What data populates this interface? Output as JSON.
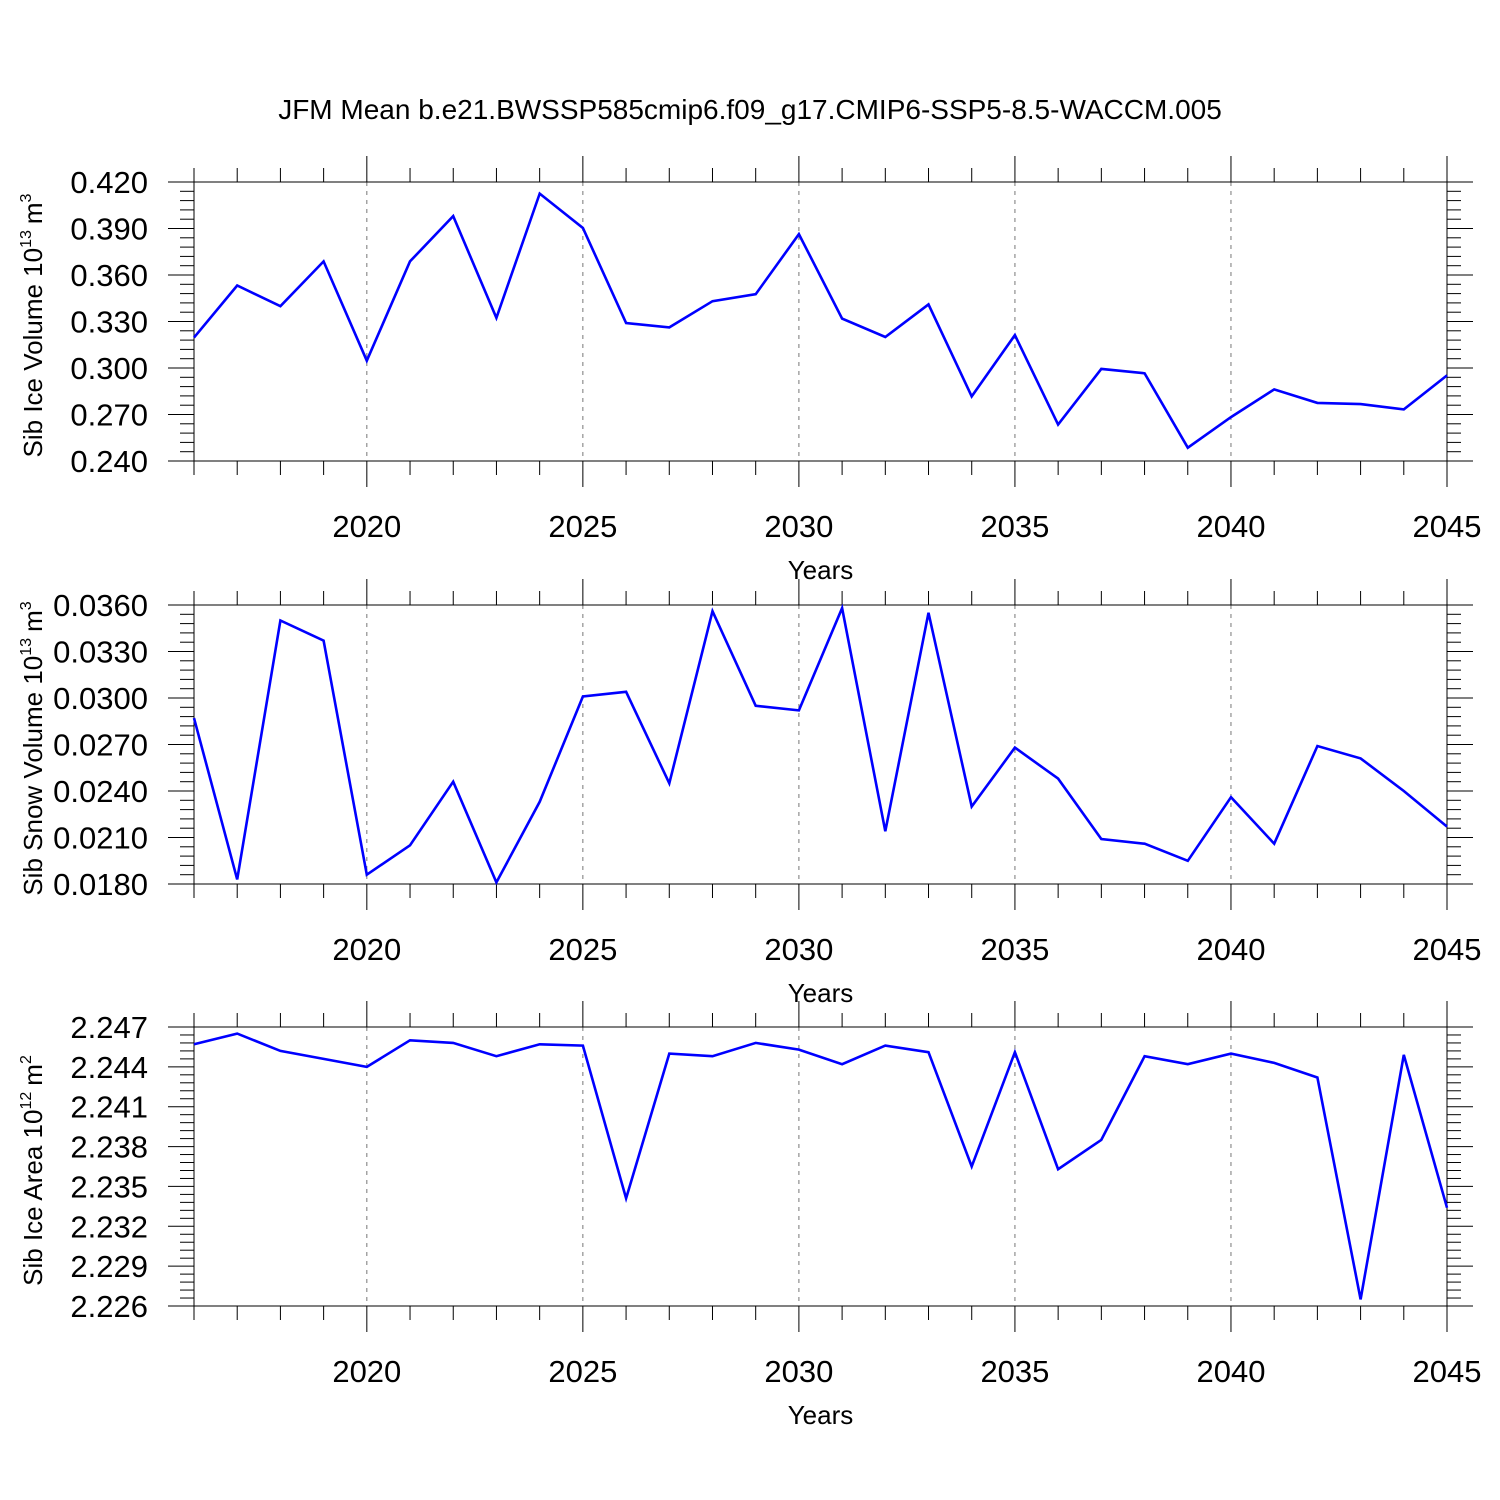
{
  "title": "JFM Mean b.e21.BWSSP585cmip6.f09_g17.CMIP6-SSP5-8.5-WACCM.005",
  "colors": {
    "line": "#0000ff",
    "axis": "#000000",
    "grid": "#777777"
  },
  "chart_data": [
    {
      "type": "line",
      "ylabel_main": "Sib Ice Volume 10",
      "ylabel_exp": "13",
      "ylabel_unit": "m",
      "ylabel_unit_exp": "3",
      "xlabel": "Years",
      "xlim": [
        2016,
        2045
      ],
      "ylim": [
        0.24,
        0.42
      ],
      "yticks": [
        "0.240",
        "0.270",
        "0.300",
        "0.330",
        "0.360",
        "0.390",
        "0.420"
      ],
      "ytick_values": [
        0.24,
        0.27,
        0.3,
        0.33,
        0.36,
        0.39,
        0.42
      ],
      "xticks": [
        "2020",
        "2025",
        "2030",
        "2035",
        "2040",
        "2045"
      ],
      "xtick_values": [
        2020,
        2025,
        2030,
        2035,
        2040,
        2045
      ],
      "x": [
        2016,
        2017,
        2018,
        2019,
        2020,
        2021,
        2022,
        2023,
        2024,
        2025,
        2026,
        2027,
        2028,
        2029,
        2030,
        2031,
        2032,
        2033,
        2034,
        2035,
        2036,
        2037,
        2038,
        2039,
        2040,
        2041,
        2042,
        2043,
        2044,
        2045
      ],
      "values": [
        0.3196,
        0.3532,
        0.3399,
        0.3688,
        0.3047,
        0.3688,
        0.398,
        0.3323,
        0.4125,
        0.3903,
        0.329,
        0.3262,
        0.3431,
        0.3476,
        0.3864,
        0.3319,
        0.32,
        0.341,
        0.2817,
        0.3212,
        0.2635,
        0.2994,
        0.2966,
        0.2486,
        0.2683,
        0.2862,
        0.2775,
        0.2767,
        0.2733,
        0.2952
      ],
      "grid": "vertical dashed at major x ticks"
    },
    {
      "type": "line",
      "ylabel_main": "Sib Snow Volume 10",
      "ylabel_exp": "13",
      "ylabel_unit": "m",
      "ylabel_unit_exp": "3",
      "xlabel": "Years",
      "xlim": [
        2016,
        2045
      ],
      "ylim": [
        0.018,
        0.036
      ],
      "yticks": [
        "0.0180",
        "0.0210",
        "0.0240",
        "0.0270",
        "0.0300",
        "0.0330",
        "0.0360"
      ],
      "ytick_values": [
        0.018,
        0.021,
        0.024,
        0.027,
        0.03,
        0.033,
        0.036
      ],
      "xticks": [
        "2020",
        "2025",
        "2030",
        "2035",
        "2040",
        "2045"
      ],
      "xtick_values": [
        2020,
        2025,
        2030,
        2035,
        2040,
        2045
      ],
      "x": [
        2016,
        2017,
        2018,
        2019,
        2020,
        2021,
        2022,
        2023,
        2024,
        2025,
        2026,
        2027,
        2028,
        2029,
        2030,
        2031,
        2032,
        2033,
        2034,
        2035,
        2036,
        2037,
        2038,
        2039,
        2040,
        2041,
        2042,
        2043,
        2044,
        2045
      ],
      "values": [
        0.0287,
        0.0183,
        0.035,
        0.0337,
        0.0186,
        0.0205,
        0.0246,
        0.0181,
        0.0233,
        0.0301,
        0.0304,
        0.0245,
        0.0356,
        0.0295,
        0.0292,
        0.0358,
        0.0214,
        0.0355,
        0.023,
        0.0268,
        0.0248,
        0.0209,
        0.0206,
        0.0195,
        0.0236,
        0.0206,
        0.0269,
        0.0261,
        0.024,
        0.0217
      ],
      "grid": "vertical dashed at major x ticks"
    },
    {
      "type": "line",
      "ylabel_main": "Sib Ice Area 10",
      "ylabel_exp": "12",
      "ylabel_unit": "m",
      "ylabel_unit_exp": "2",
      "xlabel": "Years",
      "xlim": [
        2016,
        2045
      ],
      "ylim": [
        2.226,
        2.247
      ],
      "yticks": [
        "2.226",
        "2.229",
        "2.232",
        "2.235",
        "2.238",
        "2.241",
        "2.244",
        "2.247"
      ],
      "ytick_values": [
        2.226,
        2.229,
        2.232,
        2.235,
        2.238,
        2.241,
        2.244,
        2.247
      ],
      "xticks": [
        "2020",
        "2025",
        "2030",
        "2035",
        "2040",
        "2045"
      ],
      "xtick_values": [
        2020,
        2025,
        2030,
        2035,
        2040,
        2045
      ],
      "x": [
        2016,
        2017,
        2018,
        2019,
        2020,
        2021,
        2022,
        2023,
        2024,
        2025,
        2026,
        2027,
        2028,
        2029,
        2030,
        2031,
        2032,
        2033,
        2034,
        2035,
        2036,
        2037,
        2038,
        2039,
        2040,
        2041,
        2042,
        2043,
        2044,
        2045
      ],
      "values": [
        2.2457,
        2.2465,
        2.2452,
        2.2446,
        2.244,
        2.246,
        2.2458,
        2.2448,
        2.2457,
        2.2456,
        2.2341,
        2.245,
        2.2448,
        2.2458,
        2.2453,
        2.2442,
        2.2456,
        2.2451,
        2.2365,
        2.2451,
        2.2363,
        2.2385,
        2.2448,
        2.2442,
        2.245,
        2.2443,
        2.2432,
        2.2265,
        2.2449,
        2.2334
      ],
      "grid": "vertical dashed at major x ticks"
    }
  ]
}
